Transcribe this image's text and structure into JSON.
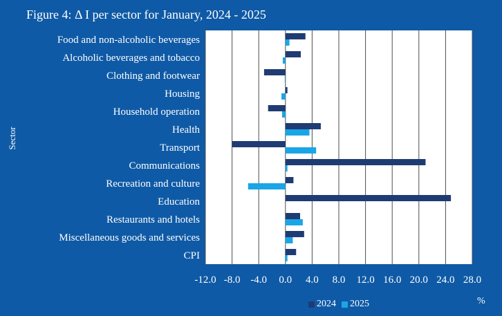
{
  "chart_data": {
    "type": "bar",
    "orientation": "horizontal",
    "title": "Figure 4: Δ I per sector for January, 2024 - 2025",
    "ylabel": "Sector",
    "unit_label": "%",
    "categories": [
      "Food and non-alcoholic beverages",
      "Alcoholic beverages and tobacco",
      "Clothing and footwear",
      "Housing",
      "Household operation",
      "Health",
      "Transport",
      "Communications",
      "Recreation and culture",
      "Education",
      "Restaurants and hotels",
      "Miscellaneous goods and services",
      "CPI"
    ],
    "series": [
      {
        "name": "2024",
        "color": "#1f3b73",
        "values": [
          3.0,
          2.3,
          -3.2,
          0.3,
          -2.6,
          5.3,
          -8.0,
          21.0,
          1.2,
          24.8,
          2.2,
          2.8,
          1.6
        ]
      },
      {
        "name": "2025",
        "color": "#1aa6e6",
        "values": [
          0.6,
          -0.4,
          -0.1,
          -0.6,
          -0.5,
          3.6,
          4.6,
          0.3,
          -5.6,
          0.0,
          2.6,
          1.1,
          0.3
        ]
      }
    ],
    "xlim": [
      -12.0,
      28.0
    ],
    "xticks": [
      "-12.0",
      "-8.0",
      "-4.0",
      "0.0",
      "4.0",
      "8.0",
      "12.0",
      "16.0",
      "20.0",
      "24.0",
      "28.0"
    ],
    "grid": true,
    "legend": "bottom"
  },
  "colors": {
    "background": "#0f5aa6",
    "plot_area": "#ffffff",
    "gridline": "#4d4d4d"
  }
}
